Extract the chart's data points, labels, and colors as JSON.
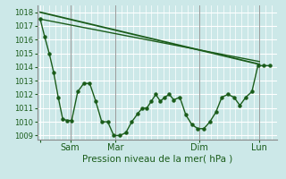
{
  "bg_color": "#cce8e8",
  "grid_color": "#ffffff",
  "line_color": "#1a5c1a",
  "marker_color": "#1a5c1a",
  "ylabel_ticks": [
    1009,
    1010,
    1011,
    1012,
    1013,
    1014,
    1015,
    1016,
    1017,
    1018
  ],
  "ymin": 1008.7,
  "ymax": 1018.5,
  "xlabel": "Pression niveau de la mer( hPa )",
  "xtick_positions": [
    2,
    22,
    52,
    108,
    148
  ],
  "xtick_labels": [
    "",
    "Sam",
    "Mar",
    "Dim",
    "Lun"
  ],
  "series1_x": [
    2,
    5,
    8,
    11,
    14,
    17,
    20,
    23,
    27,
    31,
    35,
    39,
    43,
    47,
    51,
    55,
    59,
    63,
    67,
    70,
    73,
    76,
    79,
    82,
    85,
    88,
    91,
    95,
    99,
    103,
    107,
    111,
    115,
    119,
    123,
    127,
    131,
    135,
    139,
    143,
    147,
    151,
    155
  ],
  "series1_y": [
    1017.5,
    1016.2,
    1015.0,
    1013.6,
    1011.8,
    1010.2,
    1010.1,
    1010.1,
    1012.2,
    1012.8,
    1012.8,
    1011.5,
    1010.0,
    1010.0,
    1009.0,
    1009.0,
    1009.2,
    1010.0,
    1010.6,
    1011.0,
    1011.0,
    1011.5,
    1012.0,
    1011.5,
    1011.8,
    1012.0,
    1011.6,
    1011.8,
    1010.5,
    1009.8,
    1009.5,
    1009.5,
    1010.0,
    1010.7,
    1011.8,
    1012.0,
    1011.8,
    1011.2,
    1011.8,
    1012.2,
    1014.1,
    1014.1,
    1014.1
  ],
  "series2_x": [
    2,
    148
  ],
  "series2_y": [
    1018.0,
    1014.2
  ],
  "series3_x": [
    2,
    148
  ],
  "series3_y": [
    1017.5,
    1014.4
  ],
  "vline_positions": [
    22,
    52,
    108,
    148
  ],
  "xmin": 0,
  "xmax": 160
}
